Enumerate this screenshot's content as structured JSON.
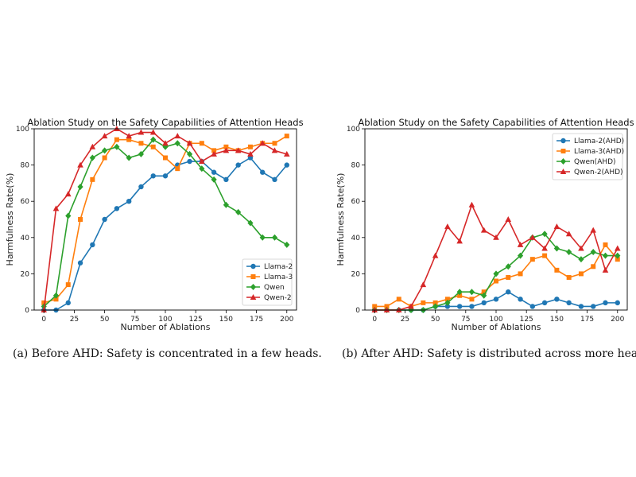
{
  "chart_data": [
    {
      "type": "line",
      "title": "Ablation Study on the Safety Capabilities of Attention Heads",
      "xlabel": "Number of Ablations",
      "ylabel": "Harmfulness Rate(%)",
      "xlim": [
        -8,
        208
      ],
      "ylim": [
        0,
        100
      ],
      "xticks": [
        0,
        25,
        50,
        75,
        100,
        125,
        150,
        175,
        200
      ],
      "yticks": [
        0,
        20,
        40,
        60,
        80,
        100
      ],
      "legend": "lower-right",
      "grid": false,
      "x": [
        0,
        10,
        20,
        30,
        40,
        50,
        60,
        70,
        80,
        90,
        100,
        110,
        120,
        130,
        140,
        150,
        160,
        170,
        180,
        190,
        200
      ],
      "series": [
        {
          "name": "Llama-2",
          "color": "#1f77b4",
          "marker": "circle",
          "values": [
            0,
            0,
            4,
            26,
            36,
            50,
            56,
            60,
            68,
            74,
            74,
            80,
            82,
            82,
            76,
            72,
            80,
            84,
            76,
            72,
            80
          ]
        },
        {
          "name": "Llama-3",
          "color": "#ff7f0e",
          "marker": "square",
          "values": [
            4,
            6,
            14,
            50,
            72,
            84,
            94,
            94,
            92,
            90,
            84,
            78,
            92,
            92,
            88,
            90,
            88,
            90,
            92,
            92,
            96
          ]
        },
        {
          "name": "Qwen",
          "color": "#2ca02c",
          "marker": "diamond",
          "values": [
            2,
            8,
            52,
            68,
            84,
            88,
            90,
            84,
            86,
            94,
            90,
            92,
            86,
            78,
            72,
            58,
            54,
            48,
            40,
            40,
            36
          ]
        },
        {
          "name": "Qwen-2",
          "color": "#d62728",
          "marker": "triangle",
          "values": [
            0,
            56,
            64,
            80,
            90,
            96,
            100,
            96,
            98,
            98,
            92,
            96,
            92,
            82,
            86,
            88,
            88,
            86,
            92,
            88,
            86
          ]
        }
      ],
      "caption": "(a) Before AHD: Safety is concentrated in a few heads."
    },
    {
      "type": "line",
      "title": "Ablation Study on the Safety Capabilities of Attention Heads",
      "xlabel": "Number of Ablations",
      "ylabel": "Harmfulness Rate(%)",
      "xlim": [
        -8,
        208
      ],
      "ylim": [
        0,
        100
      ],
      "xticks": [
        0,
        25,
        50,
        75,
        100,
        125,
        150,
        175,
        200
      ],
      "yticks": [
        0,
        20,
        40,
        60,
        80,
        100
      ],
      "legend": "upper-right",
      "grid": false,
      "x": [
        0,
        10,
        20,
        30,
        40,
        50,
        60,
        70,
        80,
        90,
        100,
        110,
        120,
        130,
        140,
        150,
        160,
        170,
        180,
        190,
        200
      ],
      "series": [
        {
          "name": "Llama-2(AHD)",
          "color": "#1f77b4",
          "marker": "circle",
          "values": [
            0,
            0,
            0,
            0,
            0,
            2,
            2,
            2,
            2,
            4,
            6,
            10,
            6,
            2,
            4,
            6,
            4,
            2,
            2,
            4,
            4
          ]
        },
        {
          "name": "Llama-3(AHD)",
          "color": "#ff7f0e",
          "marker": "square",
          "values": [
            2,
            2,
            6,
            2,
            4,
            4,
            6,
            8,
            6,
            10,
            16,
            18,
            20,
            28,
            30,
            22,
            18,
            20,
            24,
            36,
            28
          ]
        },
        {
          "name": "Qwen(AHD)",
          "color": "#2ca02c",
          "marker": "diamond",
          "values": [
            0,
            0,
            0,
            0,
            0,
            2,
            4,
            10,
            10,
            8,
            20,
            24,
            30,
            40,
            42,
            34,
            32,
            28,
            32,
            30,
            30
          ]
        },
        {
          "name": "Qwen-2(AHD)",
          "color": "#d62728",
          "marker": "triangle",
          "values": [
            0,
            0,
            0,
            2,
            14,
            30,
            46,
            38,
            58,
            44,
            40,
            50,
            36,
            40,
            34,
            46,
            42,
            34,
            44,
            22,
            34
          ]
        }
      ],
      "caption": "(b) After AHD: Safety is distributed across more heads."
    }
  ]
}
